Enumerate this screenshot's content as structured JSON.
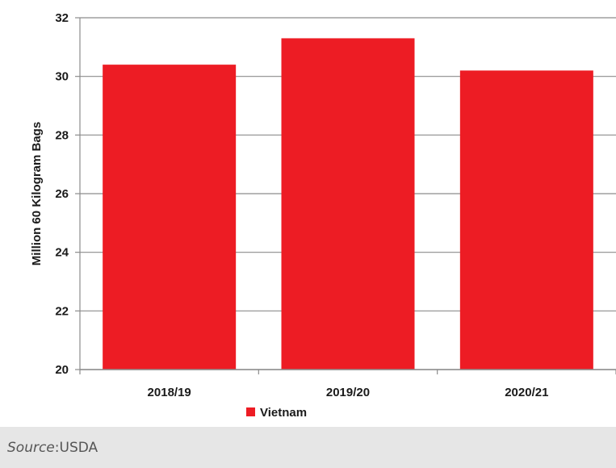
{
  "chart_data": {
    "type": "bar",
    "categories": [
      "2018/19",
      "2019/20",
      "2020/21"
    ],
    "series": [
      {
        "name": "Vietnam",
        "values": [
          30.4,
          31.3,
          30.2
        ]
      }
    ],
    "ylabel": "Million 60 Kilogram Bags",
    "ylim": [
      20,
      32
    ],
    "yticks": [
      20,
      22,
      24,
      26,
      28,
      30,
      32
    ],
    "grid": true,
    "legend_position": "bottom-left",
    "bar_color": "#ed1c24"
  },
  "caption": {
    "label": "Source",
    "separator": ": ",
    "value": "USDA"
  }
}
